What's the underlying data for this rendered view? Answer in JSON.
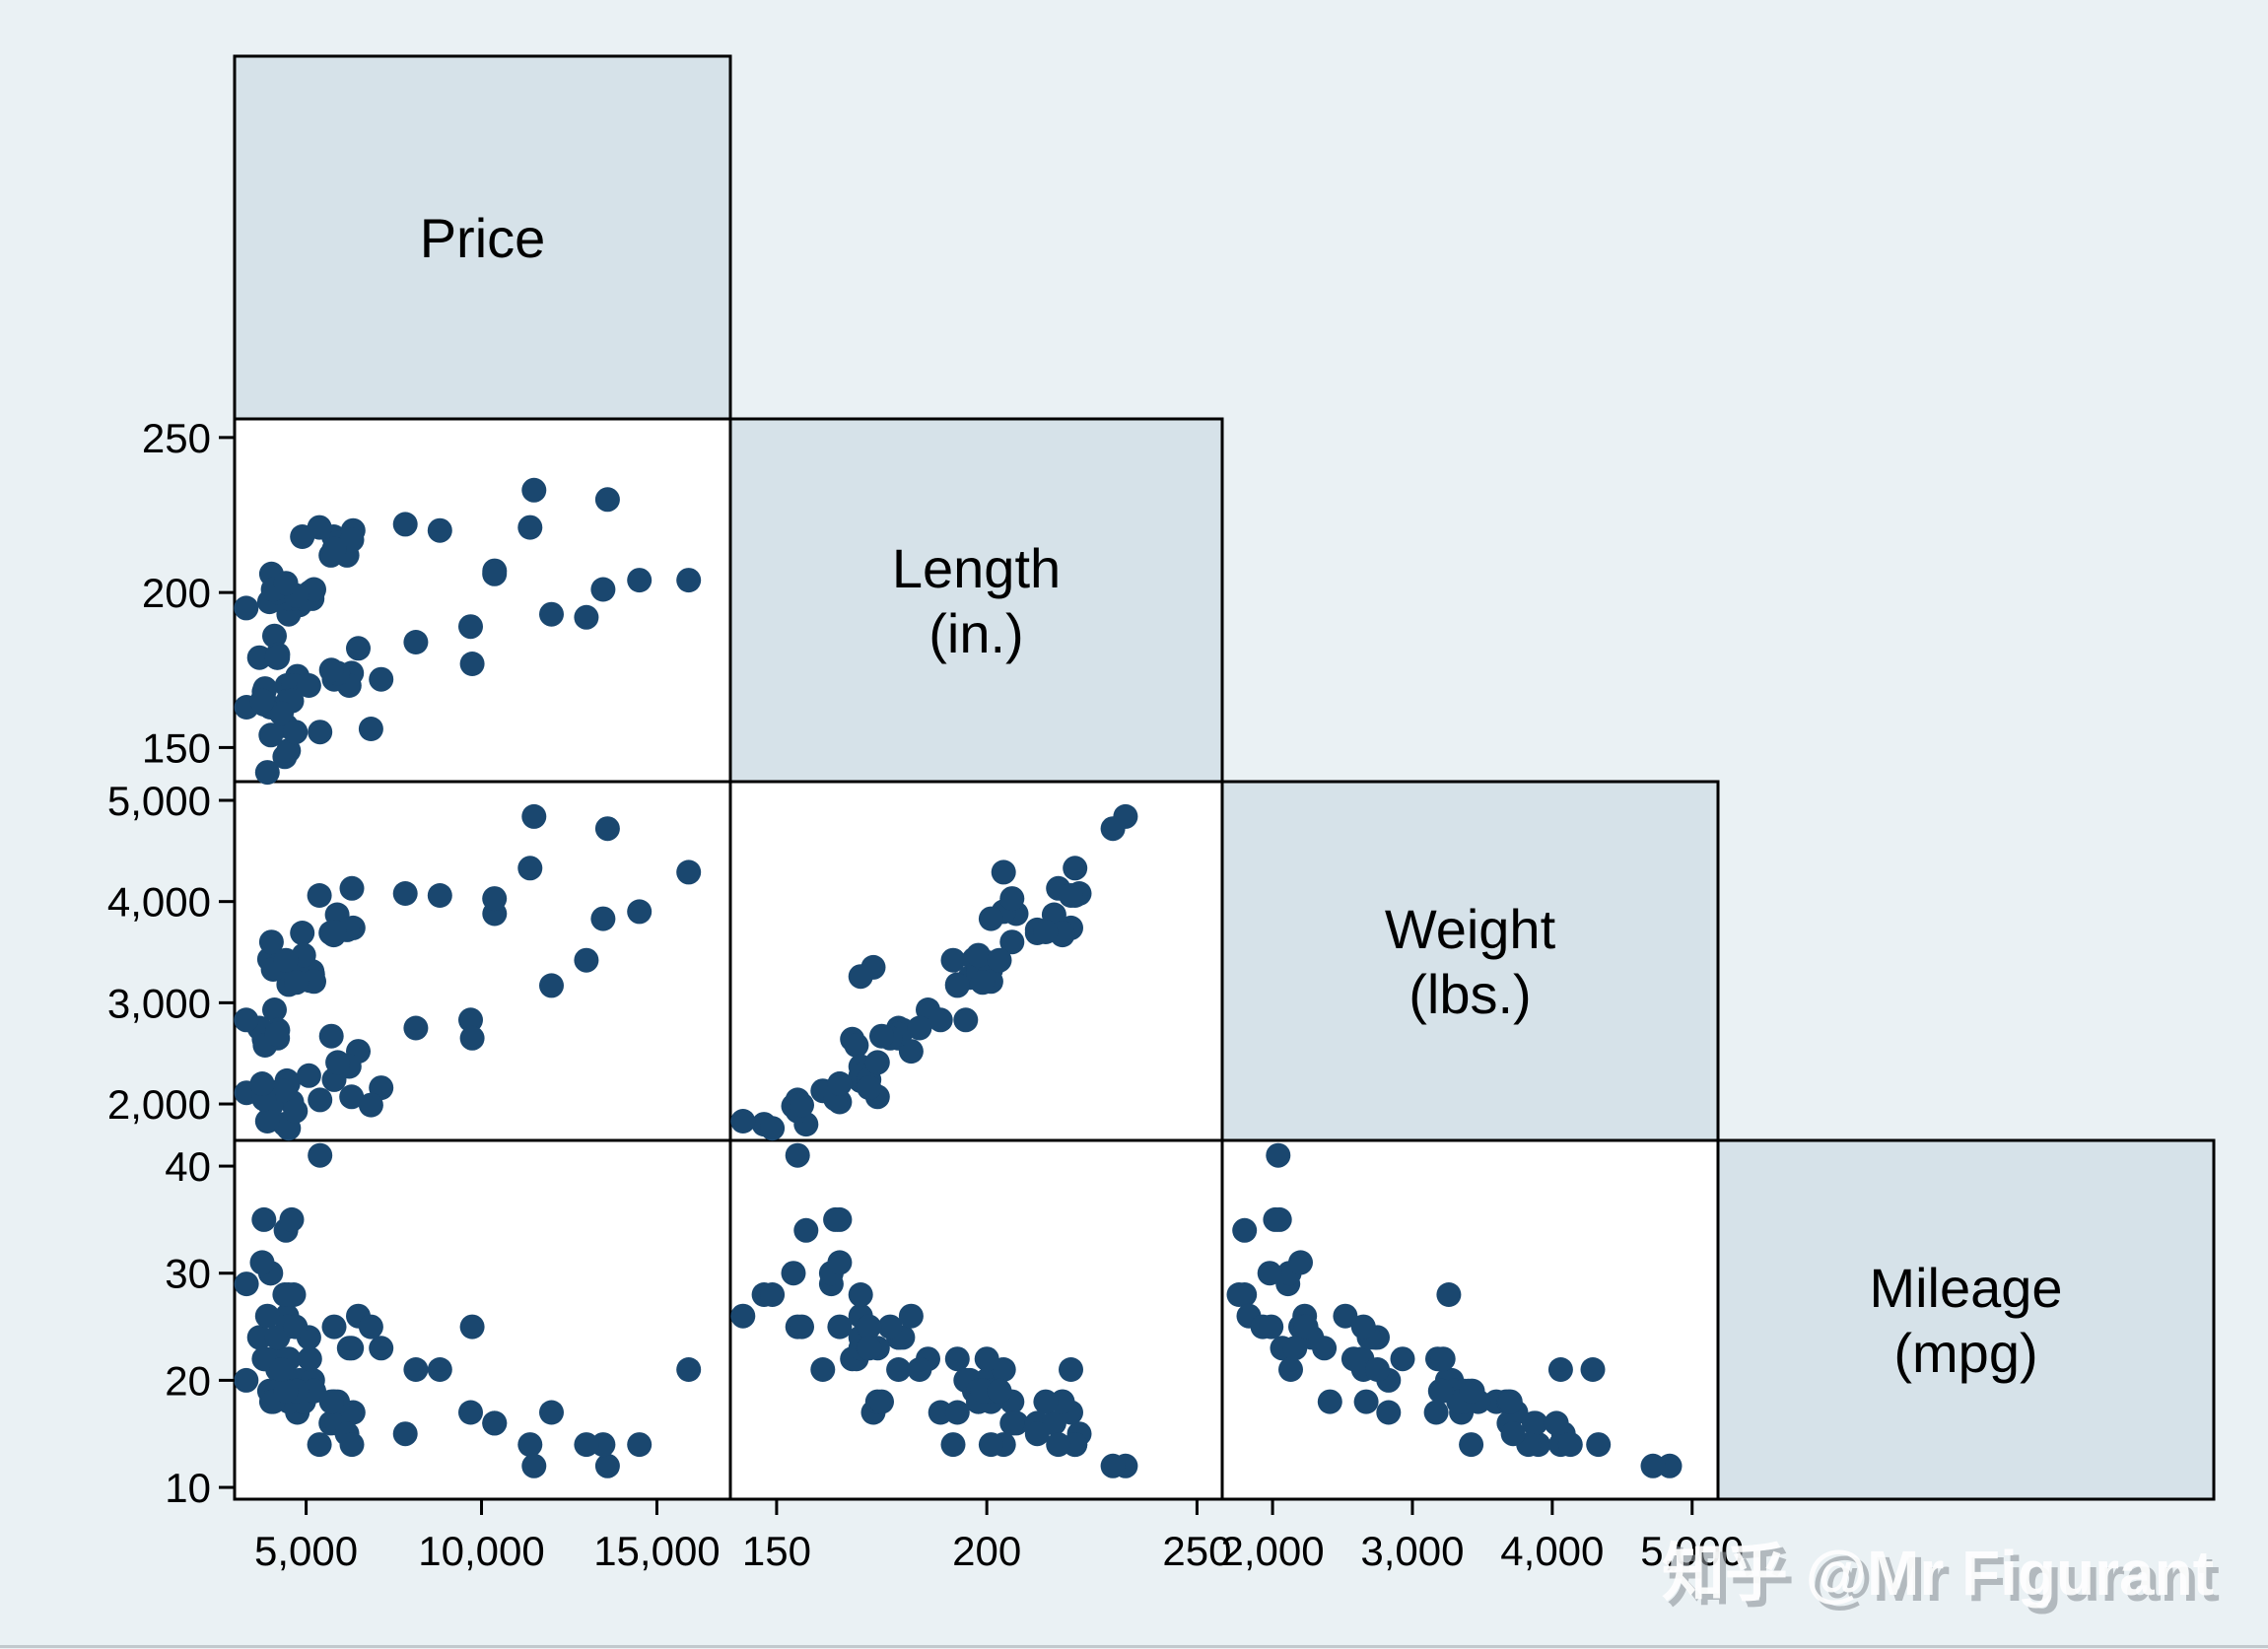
{
  "figure": {
    "kind": "stata-graph-matrix",
    "description_visible_text_only": true
  },
  "chart_data": {
    "type": "scatter",
    "subtype": "scatterplot_matrix_lower_triangle",
    "grid": "4x4 half matrix, diagonal label cells, scatter panels below diagonal",
    "legend_position": "none",
    "grid_lines": false,
    "variables": [
      {
        "key": "price",
        "label_lines": [
          "Price"
        ],
        "axis_range": [
          2960,
          17095
        ],
        "ticks": [
          5000,
          10000,
          15000
        ],
        "tick_labels": [
          "5,000",
          "10,000",
          "15,000"
        ]
      },
      {
        "key": "length",
        "label_lines": [
          "Length",
          "(in.)"
        ],
        "axis_range": [
          139,
          256
        ],
        "ticks": [
          150,
          200,
          250
        ],
        "tick_labels": [
          "150",
          "200",
          "250"
        ]
      },
      {
        "key": "weight",
        "label_lines": [
          "Weight",
          "(lbs.)"
        ],
        "axis_range": [
          1640,
          5185
        ],
        "ticks": [
          2000,
          3000,
          4000,
          5000
        ],
        "tick_labels": [
          "2,000",
          "3,000",
          "4,000",
          "5,000"
        ]
      },
      {
        "key": "mpg",
        "label_lines": [
          "Mileage",
          "(mpg)"
        ],
        "axis_range": [
          8.9,
          42.4
        ],
        "ticks": [
          10,
          20,
          30,
          40
        ],
        "tick_labels": [
          "10",
          "20",
          "30",
          "40"
        ]
      }
    ],
    "observation_fields": [
      "price",
      "length",
      "weight",
      "mpg"
    ],
    "observations": [
      [
        4099,
        186,
        2930,
        22
      ],
      [
        4749,
        173,
        3350,
        17
      ],
      [
        3799,
        168,
        2640,
        22
      ],
      [
        4816,
        196,
        3250,
        20
      ],
      [
        7827,
        222,
        4080,
        15
      ],
      [
        5788,
        218,
        3670,
        18
      ],
      [
        4453,
        170,
        2230,
        26
      ],
      [
        5189,
        200,
        3280,
        20
      ],
      [
        10372,
        207,
        3880,
        16
      ],
      [
        4082,
        200,
        3400,
        19
      ],
      [
        11385,
        221,
        4330,
        14
      ],
      [
        14500,
        204,
        3900,
        14
      ],
      [
        15906,
        204,
        4290,
        21
      ],
      [
        3299,
        163,
        2110,
        29
      ],
      [
        5705,
        212,
        3690,
        16
      ],
      [
        4504,
        193,
        3180,
        22
      ],
      [
        5104,
        200,
        3220,
        22
      ],
      [
        3667,
        179,
        2750,
        24
      ],
      [
        3955,
        197,
        3430,
        19
      ],
      [
        3984,
        163,
        2120,
        30
      ],
      [
        4010,
        206,
        3600,
        18
      ],
      [
        5886,
        216,
        3870,
        16
      ],
      [
        6342,
        220,
        3740,
        17
      ],
      [
        4389,
        147,
        1800,
        28
      ],
      [
        4187,
        179,
        2650,
        21
      ],
      [
        11497,
        233,
        4840,
        12
      ],
      [
        13594,
        230,
        4720,
        12
      ],
      [
        13466,
        201,
        3830,
        14
      ],
      [
        3829,
        169,
        2580,
        22
      ],
      [
        5379,
        221,
        4060,
        14
      ],
      [
        6165,
        212,
        3720,
        15
      ],
      [
        4516,
        198,
        3370,
        18
      ],
      [
        6303,
        217,
        4130,
        14
      ],
      [
        3291,
        195,
        2830,
        20
      ],
      [
        8814,
        220,
        4060,
        21
      ],
      [
        5172,
        198,
        3310,
        19
      ],
      [
        4733,
        198,
        3300,
        19
      ],
      [
        4890,
        218,
        3690,
        18
      ],
      [
        4181,
        200,
        3370,
        19
      ],
      [
        4195,
        180,
        2730,
        24
      ],
      [
        10371,
        206,
        4030,
        16
      ],
      [
        4647,
        170,
        3260,
        28
      ],
      [
        4425,
        157,
        1800,
        34
      ],
      [
        4482,
        165,
        2200,
        25
      ],
      [
        6486,
        182,
        2520,
        26
      ],
      [
        4060,
        201,
        3330,
        18
      ],
      [
        5798,
        214,
        3700,
        18
      ],
      [
        4934,
        198,
        3470,
        18
      ],
      [
        5222,
        201,
        3210,
        19
      ],
      [
        4723,
        199,
        3200,
        19
      ],
      [
        4424,
        203,
        3420,
        19
      ],
      [
        4172,
        179,
        2690,
        24
      ],
      [
        9690,
        189,
        2830,
        17
      ],
      [
        6295,
        174,
        2070,
        23
      ],
      [
        9735,
        177,
        2650,
        25
      ],
      [
        6229,
        170,
        2370,
        23
      ],
      [
        4589,
        165,
        2020,
        35
      ],
      [
        5079,
        170,
        2280,
        24
      ],
      [
        8129,
        184,
        2750,
        21
      ],
      [
        4296,
        161,
        2130,
        21
      ],
      [
        5799,
        172,
        2240,
        25
      ],
      [
        4499,
        149,
        1760,
        28
      ],
      [
        3995,
        154,
        1980,
        30
      ],
      [
        12990,
        192,
        3420,
        14
      ],
      [
        3895,
        142,
        1830,
        26
      ],
      [
        3798,
        164,
        2050,
        35
      ],
      [
        5899,
        174,
        2410,
        18
      ],
      [
        3748,
        165,
        2200,
        31
      ],
      [
        5719,
        175,
        2670,
        18
      ],
      [
        7140,
        172,
        2160,
        23
      ],
      [
        5397,
        155,
        2040,
        41
      ],
      [
        4697,
        155,
        1930,
        25
      ],
      [
        6850,
        156,
        1990,
        25
      ],
      [
        11995,
        193,
        3170,
        17
      ]
    ],
    "marker": {
      "shape": "circle",
      "color": "#1a476f",
      "radius_px": 12.5
    }
  },
  "watermark": {
    "text": "知乎 @Mr Figurant"
  },
  "colors": {
    "background": "#eaf1f4",
    "diagonal_cell_fill": "#d6e2e9",
    "panel_fill": "#ffffff",
    "border": "#000000",
    "tick_label": "#000000",
    "marker": "#1a476f",
    "watermark_fill": "#ffffff",
    "watermark_shadow": "#8e959b",
    "bottom_edge_line": "#c2c9cd"
  }
}
